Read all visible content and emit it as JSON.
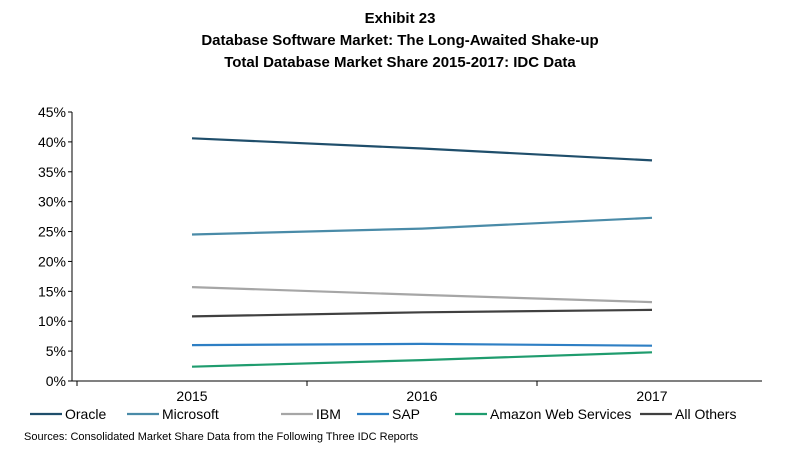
{
  "header": {
    "exhibit": "Exhibit 23",
    "title": "Database Software Market: The Long-Awaited Shake-up",
    "subtitle": "Total Database Market Share 2015-2017: IDC Data"
  },
  "source": "Sources: Consolidated Market Share Data from the Following Three IDC Reports",
  "chart_data": {
    "type": "line",
    "title": "Database Software Market: The Long-Awaited Shake-up",
    "subtitle": "Total Database Market Share 2015-2017: IDC Data",
    "xlabel": "",
    "ylabel": "",
    "categories": [
      "2015",
      "2016",
      "2017"
    ],
    "ylim": [
      0,
      45
    ],
    "yticks": [
      "0%",
      "5%",
      "10%",
      "15%",
      "20%",
      "25%",
      "30%",
      "35%",
      "40%",
      "45%"
    ],
    "grid": false,
    "legend_position": "bottom",
    "series": [
      {
        "name": "Oracle",
        "color": "#1f4e6b",
        "values": [
          40.6,
          38.9,
          36.9
        ]
      },
      {
        "name": "Microsoft",
        "color": "#4a8ba8",
        "values": [
          24.5,
          25.5,
          27.3
        ]
      },
      {
        "name": "IBM",
        "color": "#a6a6a6",
        "values": [
          15.7,
          14.4,
          13.2
        ]
      },
      {
        "name": "SAP",
        "color": "#2e7fc4",
        "values": [
          6.0,
          6.2,
          5.9
        ]
      },
      {
        "name": "Amazon Web Services",
        "color": "#1f9c6e",
        "values": [
          2.4,
          3.5,
          4.8
        ]
      },
      {
        "name": "All Others",
        "color": "#404040",
        "values": [
          10.8,
          11.5,
          11.9
        ]
      }
    ]
  }
}
